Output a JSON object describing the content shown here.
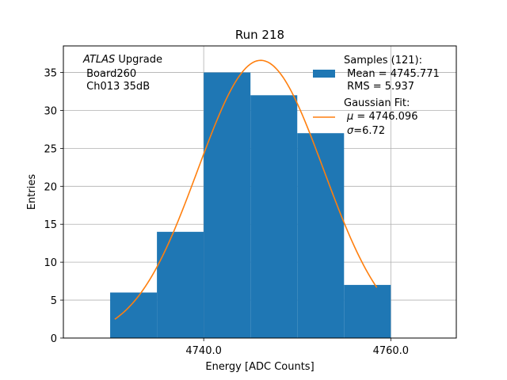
{
  "chart_data": {
    "type": "bar",
    "title": "Run 218",
    "xlabel": "Energy [ADC Counts]",
    "ylabel": "Entries",
    "xlim": [
      4725,
      4767
    ],
    "ylim": [
      0,
      38.5
    ],
    "xticks": [
      4740,
      4760
    ],
    "xtick_labels": [
      "4740.0",
      "4760.0"
    ],
    "yticks": [
      0,
      5,
      10,
      15,
      20,
      25,
      30,
      35
    ],
    "ytick_labels": [
      "0",
      "5",
      "10",
      "15",
      "20",
      "25",
      "30",
      "35"
    ],
    "grid": true,
    "histogram": {
      "name": "Samples (121):",
      "color": "#1f77b4",
      "bin_edges": [
        4730,
        4735,
        4740,
        4745,
        4750,
        4755,
        4760
      ],
      "counts": [
        6,
        14,
        35,
        32,
        27,
        7
      ]
    },
    "fit": {
      "name": "Gaussian Fit:",
      "color": "#ff7f0e",
      "mu": 4746.096,
      "sigma": 6.72,
      "amplitude": 36.6,
      "x_range": [
        4730.5,
        4758.5
      ]
    },
    "annotation": {
      "line1_italic": "ATLAS",
      "line1_rest": " Upgrade",
      "line2": " Board260",
      "line3": " Ch013 35dB"
    },
    "legend": {
      "position": "top-right",
      "samples_title": "Samples (121):",
      "samples_mean": " Mean = 4745.771",
      "samples_rms": " RMS = 5.937",
      "fit_title": "Gaussian Fit:",
      "fit_mu_symbol": "μ",
      "fit_mu_rest": " = 4746.096",
      "fit_sigma_symbol": "σ",
      "fit_sigma_rest": "=6.72"
    }
  }
}
